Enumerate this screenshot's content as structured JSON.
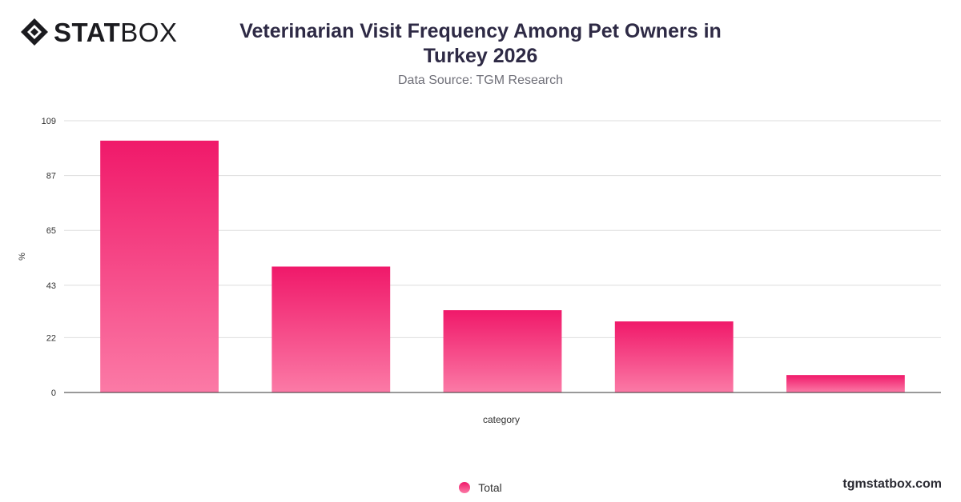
{
  "brand": {
    "logo_bold": "STAT",
    "logo_light": "BOX",
    "website": "tgmstatbox.com"
  },
  "header": {
    "title": "Veterinarian Visit Frequency Among Pet Owners in Turkey 2026",
    "subtitle": "Data Source: TGM Research"
  },
  "colors": {
    "bar_top": "#f0196a",
    "bar_bottom": "#fb7aa6",
    "grid": "#dddddd",
    "axis": "#333333"
  },
  "chart_data": {
    "type": "bar",
    "title": "Veterinarian Visit Frequency Among Pet Owners in Turkey 2026",
    "subtitle": "Data Source: TGM Research",
    "xlabel": "category",
    "ylabel": "%",
    "ylim": [
      0,
      109
    ],
    "yticks": [
      0,
      22,
      43,
      65,
      87,
      109
    ],
    "categories": [
      "",
      "",
      "",
      "",
      ""
    ],
    "series": [
      {
        "name": "Total",
        "values": [
          101,
          50.5,
          33,
          28.5,
          7
        ]
      }
    ],
    "grid": true,
    "legend": "bottom-center"
  }
}
